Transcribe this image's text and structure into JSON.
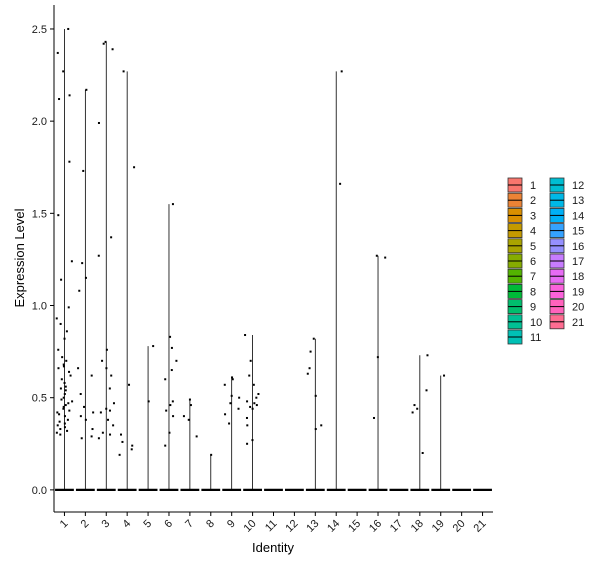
{
  "chart_data": {
    "type": "violin",
    "xlabel": "Identity",
    "ylabel": "Expression Level",
    "ylim": [
      -0.12,
      2.63
    ],
    "yticks": [
      0.0,
      0.5,
      1.0,
      1.5,
      2.0,
      2.5
    ],
    "ytick_labels": [
      "0.0",
      "0.5",
      "1.0",
      "1.5",
      "2.0",
      "2.5"
    ],
    "categories": [
      "1",
      "2",
      "3",
      "4",
      "5",
      "6",
      "7",
      "8",
      "9",
      "10",
      "11",
      "12",
      "13",
      "14",
      "15",
      "16",
      "17",
      "18",
      "19",
      "20",
      "21"
    ],
    "legend_placement": "right",
    "legend_entries": [
      "1",
      "2",
      "3",
      "4",
      "5",
      "6",
      "7",
      "8",
      "9",
      "10",
      "11",
      "12",
      "13",
      "14",
      "15",
      "16",
      "17",
      "18",
      "19",
      "20",
      "21"
    ],
    "colors": [
      "#F8766D",
      "#EB8335",
      "#DA8F00",
      "#C49A00",
      "#A9A400",
      "#86AC00",
      "#53B400",
      "#00BA38",
      "#00BE6D",
      "#00C094",
      "#00C0B5",
      "#00BDD1",
      "#00B8E7",
      "#00B0F6",
      "#35A2FF",
      "#9590FF",
      "#C77CFF",
      "#E76BF3",
      "#FA62DB",
      "#FF62BC",
      "#FF6C91"
    ],
    "max_values": [
      2.5,
      2.17,
      2.43,
      2.27,
      0.78,
      1.55,
      0.49,
      0.19,
      0.61,
      0.84,
      0.0,
      0.0,
      0.82,
      2.27,
      0.0,
      1.27,
      0.0,
      0.73,
      0.62,
      0.0,
      0.0
    ],
    "points": [
      [
        2.5,
        2.37,
        2.27,
        2.14,
        2.12,
        1.78,
        1.49,
        1.24,
        1.14,
        0.99,
        0.93,
        0.9,
        0.86,
        0.82,
        0.76,
        0.72,
        0.7,
        0.68,
        0.67,
        0.66,
        0.64,
        0.62,
        0.6,
        0.58,
        0.56,
        0.55,
        0.54,
        0.52,
        0.5,
        0.49,
        0.48,
        0.47,
        0.46,
        0.45,
        0.44,
        0.43,
        0.42,
        0.41,
        0.4,
        0.38,
        0.37,
        0.36,
        0.35,
        0.34,
        0.33,
        0.32,
        0.31,
        0.3
      ],
      [
        2.17,
        1.73,
        1.23,
        1.15,
        1.08,
        0.66,
        0.62,
        0.52,
        0.45,
        0.42,
        0.4,
        0.38,
        0.33,
        0.29,
        0.28
      ],
      [
        2.43,
        2.42,
        2.39,
        1.99,
        1.37,
        1.27,
        0.76,
        0.7,
        0.66,
        0.62,
        0.55,
        0.47,
        0.44,
        0.43,
        0.42,
        0.38,
        0.35,
        0.31,
        0.3,
        0.28
      ],
      [
        2.27,
        1.75,
        0.57,
        0.3,
        0.26,
        0.24,
        0.22,
        0.19
      ],
      [
        0.78,
        0.48
      ],
      [
        1.55,
        0.83,
        0.77,
        0.7,
        0.65,
        0.6,
        0.48,
        0.46,
        0.43,
        0.4,
        0.31,
        0.24
      ],
      [
        0.49,
        0.46,
        0.4,
        0.38,
        0.29
      ],
      [
        0.19
      ],
      [
        0.61,
        0.6,
        0.57,
        0.51,
        0.5,
        0.47,
        0.44,
        0.41,
        0.36
      ],
      [
        0.84,
        0.7,
        0.62,
        0.57,
        0.52,
        0.5,
        0.48,
        0.47,
        0.46,
        0.45,
        0.44,
        0.39,
        0.35,
        0.27,
        0.25
      ],
      [],
      [],
      [
        0.82,
        0.75,
        0.66,
        0.63,
        0.51,
        0.35,
        0.33
      ],
      [
        2.27,
        1.66
      ],
      [],
      [
        1.27,
        1.26,
        0.72,
        0.39
      ],
      [],
      [
        0.73,
        0.54,
        0.46,
        0.44,
        0.42,
        0.2
      ],
      [
        0.62
      ],
      [],
      []
    ]
  }
}
